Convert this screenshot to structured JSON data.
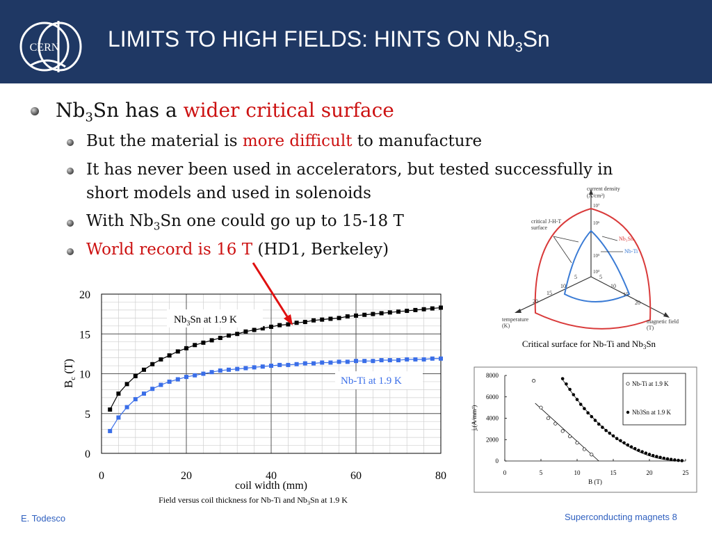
{
  "slide": {
    "title_pre": "LIMITS TO HIGH FIELDS: HINTS ON Nb",
    "title_sub": "3",
    "title_post": "Sn",
    "logo_text": "CERN",
    "bullets": {
      "b1": {
        "pre": "Nb",
        "sub": "3",
        "mid": "Sn has a ",
        "red": "wider critical surface"
      },
      "b2": {
        "pre": "But the material is ",
        "red": "more difficult",
        "post": " to manufacture"
      },
      "b3": {
        "line1": "It has never been used in accelerators, but tested successfully in",
        "line2": "short models and used in solenoids"
      },
      "b4": {
        "pre": "With Nb",
        "sub": "3",
        "post": "Sn one could go up to 15-18 T"
      },
      "b5": {
        "red": "World record is 16 T",
        "post": " (HD1, Berkeley)"
      }
    },
    "footer_left": "E. Todesco",
    "footer_right": "Superconducting magnets 8"
  },
  "chart_data": [
    {
      "type": "line",
      "xlabel": "coil width (mm)",
      "ylabel_pre": "B",
      "ylabel_sub": "c",
      "ylabel_post": " (T)",
      "caption_pre": "Field versus coil thickness for Nb-Ti and Nb",
      "caption_sub": "3",
      "caption_post": "Sn at 1.9 K",
      "xlim": [
        0,
        80
      ],
      "ylim": [
        0,
        20
      ],
      "xticks": [
        "0",
        "20",
        "40",
        "60",
        "80"
      ],
      "yticks": [
        "0",
        "5",
        "10",
        "15",
        "20"
      ],
      "grid": true,
      "series": [
        {
          "label_pre": "Nb",
          "label_sub": "3",
          "label_post": "Sn at 1.9 K",
          "color": "#000000",
          "x": [
            2,
            4,
            6,
            8,
            10,
            12,
            14,
            16,
            18,
            20,
            22,
            24,
            26,
            28,
            30,
            32,
            34,
            36,
            38,
            40,
            42,
            44,
            46,
            48,
            50,
            52,
            54,
            56,
            58,
            60,
            62,
            64,
            66,
            68,
            70,
            72,
            74,
            76,
            78,
            80
          ],
          "y": [
            5.5,
            7.5,
            8.7,
            9.7,
            10.5,
            11.2,
            11.8,
            12.3,
            12.8,
            13.2,
            13.6,
            13.9,
            14.2,
            14.5,
            14.8,
            15.0,
            15.3,
            15.5,
            15.7,
            15.9,
            16.1,
            16.2,
            16.4,
            16.5,
            16.7,
            16.8,
            16.9,
            17.0,
            17.2,
            17.3,
            17.4,
            17.5,
            17.6,
            17.7,
            17.8,
            17.9,
            18.0,
            18.1,
            18.2,
            18.3
          ]
        },
        {
          "label": "Nb-Ti at 1.9 K",
          "color": "#3a6ee8",
          "x": [
            2,
            4,
            6,
            8,
            10,
            12,
            14,
            16,
            18,
            20,
            22,
            24,
            26,
            28,
            30,
            32,
            34,
            36,
            38,
            40,
            42,
            44,
            46,
            48,
            50,
            52,
            54,
            56,
            58,
            60,
            62,
            64,
            66,
            68,
            70,
            72,
            74,
            76,
            78,
            80
          ],
          "y": [
            2.8,
            4.5,
            5.8,
            6.8,
            7.5,
            8.1,
            8.6,
            9.0,
            9.3,
            9.6,
            9.8,
            10.0,
            10.2,
            10.4,
            10.5,
            10.6,
            10.7,
            10.8,
            10.9,
            11.0,
            11.1,
            11.1,
            11.2,
            11.3,
            11.3,
            11.4,
            11.4,
            11.5,
            11.5,
            11.6,
            11.6,
            11.6,
            11.7,
            11.7,
            11.7,
            11.8,
            11.8,
            11.8,
            11.9,
            11.9
          ]
        }
      ]
    },
    {
      "type": "scatter",
      "xlabel": "B (T)",
      "ylabel": "jₑ(A/mm²)",
      "xlim": [
        0,
        25
      ],
      "ylim": [
        0,
        8000
      ],
      "xticks": [
        "0",
        "5",
        "10",
        "15",
        "20",
        "25"
      ],
      "yticks": [
        "0",
        "2000",
        "4000",
        "6000",
        "8000"
      ],
      "legend": [
        "Nb-Ti at 1.9 K",
        "Nb3Sn at 1.9 K"
      ],
      "series": [
        {
          "name": "Nb-Ti at 1.9 K",
          "marker": "open",
          "x": [
            4,
            5,
            6,
            7,
            8,
            9,
            10,
            11,
            12
          ],
          "y": [
            7500,
            5000,
            4000,
            3500,
            2800,
            2300,
            1700,
            1100,
            600
          ]
        },
        {
          "name": "Nb3Sn at 1.9 K",
          "marker": "filled",
          "x": [
            8,
            8.5,
            9,
            9.5,
            10,
            10.5,
            11,
            11.5,
            12,
            12.5,
            13,
            13.5,
            14,
            14.5,
            15,
            15.5,
            16,
            16.5,
            17,
            17.5,
            18,
            18.5,
            19,
            19.5,
            20,
            20.5,
            21,
            21.5,
            22,
            22.5,
            23,
            23.5,
            24,
            24.5
          ],
          "y": [
            7700,
            7200,
            6700,
            6200,
            5750,
            5300,
            4900,
            4500,
            4150,
            3800,
            3450,
            3150,
            2850,
            2600,
            2350,
            2100,
            1900,
            1700,
            1500,
            1320,
            1160,
            1000,
            870,
            740,
            620,
            510,
            420,
            340,
            260,
            200,
            150,
            100,
            60,
            30
          ]
        }
      ]
    },
    {
      "type": "other",
      "caption_pre": "Critical surface for Nb-Ti and Nb",
      "caption_sub": "3",
      "caption_post": "Sn",
      "axis_labels": {
        "current": [
          "current density",
          "(A/cm²)"
        ],
        "temperature": [
          "temperature",
          "(K)"
        ],
        "field": [
          "magnetic field",
          "(T)"
        ]
      },
      "surface_label": [
        "critical J-H-T",
        "surface"
      ],
      "series_labels": [
        "Nb₃Sn",
        "Nb-Ti"
      ],
      "current_ticks": [
        "10⁷",
        "10⁶",
        "10⁵",
        "10³"
      ],
      "temperature_ticks": [
        "5",
        "10",
        "15",
        "20"
      ],
      "field_ticks": [
        "5",
        "10",
        "15",
        "20"
      ]
    }
  ]
}
